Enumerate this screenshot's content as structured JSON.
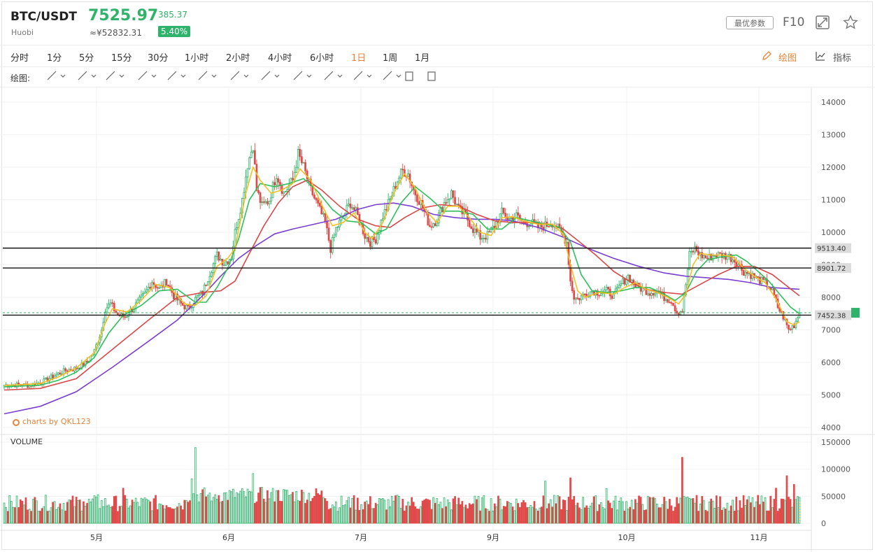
{
  "header": {
    "pair": "BTC/USDT",
    "exchange": "Huobi",
    "price": "7525.97",
    "change": "385.37",
    "cny_price": "≈¥52832.31",
    "change_pct": "5.40%",
    "opt_label": "最优参数",
    "f10_label": "F10"
  },
  "periods": [
    "分时",
    "1分",
    "5分",
    "15分",
    "30分",
    "1小时",
    "2小时",
    "4小时",
    "6小时",
    "1日",
    "1周",
    "1月"
  ],
  "active_period": "1日",
  "toolbar": {
    "draw_label": "绘图",
    "indicator_label": "指标",
    "tools_label": "绘图:"
  },
  "watermark": "charts by QKL123",
  "volume_label": "VOLUME",
  "colors": {
    "up": "#2fb36b",
    "down": "#e04a4a",
    "ma5": "#f2c01e",
    "ma10": "#2ec05a",
    "ma30": "#d94848",
    "ma60": "#7a3fd0",
    "accent": "#e8833a"
  },
  "chart_data": {
    "type": "candlestick",
    "price_axis": {
      "min": 4000,
      "max": 14000,
      "ticks": [
        4000,
        5000,
        6000,
        7000,
        8000,
        9000,
        10000,
        11000,
        12000,
        13000,
        14000
      ]
    },
    "volume_axis": {
      "min": 0,
      "max": 150000,
      "ticks": [
        0,
        50000,
        100000,
        150000
      ]
    },
    "x_labels": [
      "5月",
      "6月",
      "7月",
      "9月",
      "10月",
      "11月"
    ],
    "horizontal_lines": [
      9513.4,
      8901.72,
      7452.38
    ],
    "horizontal_line_labels": [
      "9513.40",
      "8901.72",
      "7452.38"
    ],
    "last_price": 7525.97,
    "close_path": [
      [
        0,
        5300
      ],
      [
        8,
        5310
      ],
      [
        14,
        5290
      ],
      [
        22,
        5420
      ],
      [
        28,
        5600
      ],
      [
        34,
        5750
      ],
      [
        40,
        5820
      ],
      [
        46,
        6000
      ],
      [
        50,
        6350
      ],
      [
        54,
        7000
      ],
      [
        56,
        7650
      ],
      [
        59,
        7800
      ],
      [
        63,
        7450
      ],
      [
        67,
        7400
      ],
      [
        72,
        7700
      ],
      [
        78,
        8100
      ],
      [
        82,
        8500
      ],
      [
        86,
        8250
      ],
      [
        90,
        8500
      ],
      [
        94,
        8050
      ],
      [
        98,
        7800
      ],
      [
        102,
        7650
      ],
      [
        106,
        7950
      ],
      [
        110,
        8150
      ],
      [
        114,
        8750
      ],
      [
        118,
        9300
      ],
      [
        122,
        9050
      ],
      [
        126,
        9250
      ],
      [
        128,
        10000
      ],
      [
        132,
        11000
      ],
      [
        135,
        12100
      ],
      [
        138,
        12700
      ],
      [
        140,
        11300
      ],
      [
        143,
        10800
      ],
      [
        147,
        11000
      ],
      [
        151,
        11800
      ],
      [
        155,
        11200
      ],
      [
        160,
        11600
      ],
      [
        163,
        12400
      ],
      [
        166,
        12000
      ],
      [
        170,
        11300
      ],
      [
        174,
        10800
      ],
      [
        178,
        10300
      ],
      [
        181,
        9500
      ],
      [
        184,
        10100
      ],
      [
        188,
        10500
      ],
      [
        192,
        10900
      ],
      [
        196,
        10500
      ],
      [
        200,
        9900
      ],
      [
        203,
        9700
      ],
      [
        206,
        9800
      ],
      [
        210,
        10500
      ],
      [
        214,
        11000
      ],
      [
        218,
        11600
      ],
      [
        221,
        11900
      ],
      [
        224,
        11800
      ],
      [
        227,
        11300
      ],
      [
        231,
        10900
      ],
      [
        236,
        10200
      ],
      [
        240,
        10400
      ],
      [
        244,
        10900
      ],
      [
        248,
        11200
      ],
      [
        252,
        10700
      ],
      [
        256,
        10500
      ],
      [
        260,
        10100
      ],
      [
        264,
        9850
      ],
      [
        268,
        9900
      ],
      [
        272,
        10200
      ],
      [
        276,
        10600
      ],
      [
        280,
        10400
      ],
      [
        284,
        10500
      ],
      [
        288,
        10300
      ],
      [
        292,
        10300
      ],
      [
        296,
        10150
      ],
      [
        300,
        10200
      ],
      [
        304,
        10300
      ],
      [
        308,
        10050
      ],
      [
        312,
        9700
      ],
      [
        314,
        8500
      ],
      [
        316,
        8000
      ],
      [
        318,
        7950
      ],
      [
        322,
        8100
      ],
      [
        326,
        8200
      ],
      [
        330,
        8150
      ],
      [
        334,
        8200
      ],
      [
        338,
        8050
      ],
      [
        342,
        8400
      ],
      [
        346,
        8650
      ],
      [
        350,
        8350
      ],
      [
        354,
        8250
      ],
      [
        358,
        8150
      ],
      [
        362,
        8200
      ],
      [
        366,
        8000
      ],
      [
        370,
        7900
      ],
      [
        373,
        7550
      ],
      [
        376,
        7600
      ],
      [
        378,
        8400
      ],
      [
        380,
        9300
      ],
      [
        383,
        9500
      ],
      [
        386,
        9300
      ],
      [
        390,
        9200
      ],
      [
        394,
        9300
      ],
      [
        398,
        9300
      ],
      [
        402,
        9250
      ],
      [
        406,
        9100
      ],
      [
        410,
        8800
      ],
      [
        414,
        8700
      ],
      [
        418,
        8550
      ],
      [
        422,
        8450
      ],
      [
        426,
        8200
      ],
      [
        429,
        7700
      ],
      [
        432,
        7400
      ],
      [
        435,
        7000
      ],
      [
        438,
        7150
      ],
      [
        441,
        7526
      ]
    ],
    "ma5": [
      [
        0,
        5290
      ],
      [
        20,
        5350
      ],
      [
        30,
        5550
      ],
      [
        40,
        5830
      ],
      [
        50,
        6300
      ],
      [
        56,
        7200
      ],
      [
        60,
        7650
      ],
      [
        68,
        7550
      ],
      [
        76,
        7900
      ],
      [
        84,
        8400
      ],
      [
        92,
        8300
      ],
      [
        100,
        7800
      ],
      [
        106,
        7750
      ],
      [
        112,
        8050
      ],
      [
        118,
        8950
      ],
      [
        124,
        9200
      ],
      [
        128,
        9500
      ],
      [
        134,
        11200
      ],
      [
        138,
        12000
      ],
      [
        142,
        11600
      ],
      [
        148,
        11200
      ],
      [
        154,
        11300
      ],
      [
        160,
        11500
      ],
      [
        164,
        11950
      ],
      [
        170,
        11600
      ],
      [
        176,
        10850
      ],
      [
        182,
        10200
      ],
      [
        188,
        10300
      ],
      [
        194,
        10600
      ],
      [
        200,
        10000
      ],
      [
        204,
        9800
      ],
      [
        210,
        10300
      ],
      [
        216,
        11200
      ],
      [
        222,
        11800
      ],
      [
        228,
        11350
      ],
      [
        234,
        10650
      ],
      [
        240,
        10300
      ],
      [
        246,
        10800
      ],
      [
        252,
        10800
      ],
      [
        258,
        10450
      ],
      [
        264,
        10000
      ],
      [
        270,
        9900
      ],
      [
        276,
        10450
      ],
      [
        282,
        10480
      ],
      [
        288,
        10350
      ],
      [
        296,
        10250
      ],
      [
        304,
        10250
      ],
      [
        310,
        9950
      ],
      [
        314,
        9000
      ],
      [
        318,
        8200
      ],
      [
        322,
        8000
      ],
      [
        330,
        8150
      ],
      [
        338,
        8100
      ],
      [
        344,
        8300
      ],
      [
        350,
        8450
      ],
      [
        356,
        8250
      ],
      [
        362,
        8150
      ],
      [
        368,
        8000
      ],
      [
        374,
        7800
      ],
      [
        378,
        8100
      ],
      [
        382,
        9000
      ],
      [
        386,
        9350
      ],
      [
        392,
        9300
      ],
      [
        398,
        9300
      ],
      [
        404,
        9250
      ],
      [
        410,
        8900
      ],
      [
        416,
        8650
      ],
      [
        422,
        8450
      ],
      [
        428,
        7950
      ],
      [
        434,
        7250
      ],
      [
        438,
        7150
      ],
      [
        441,
        7250
      ]
    ],
    "ma10": [
      [
        0,
        5250
      ],
      [
        20,
        5300
      ],
      [
        30,
        5450
      ],
      [
        40,
        5700
      ],
      [
        50,
        6150
      ],
      [
        58,
        6900
      ],
      [
        66,
        7450
      ],
      [
        76,
        7750
      ],
      [
        86,
        8200
      ],
      [
        96,
        8250
      ],
      [
        106,
        7850
      ],
      [
        112,
        7850
      ],
      [
        118,
        8300
      ],
      [
        124,
        8900
      ],
      [
        130,
        9800
      ],
      [
        136,
        11000
      ],
      [
        142,
        11500
      ],
      [
        150,
        11400
      ],
      [
        158,
        11500
      ],
      [
        166,
        11650
      ],
      [
        174,
        11250
      ],
      [
        182,
        10700
      ],
      [
        190,
        10350
      ],
      [
        198,
        10300
      ],
      [
        206,
        9950
      ],
      [
        212,
        10100
      ],
      [
        220,
        10900
      ],
      [
        228,
        11400
      ],
      [
        236,
        11050
      ],
      [
        244,
        10650
      ],
      [
        252,
        10650
      ],
      [
        260,
        10550
      ],
      [
        268,
        10100
      ],
      [
        276,
        10100
      ],
      [
        284,
        10450
      ],
      [
        292,
        10350
      ],
      [
        300,
        10250
      ],
      [
        308,
        10150
      ],
      [
        314,
        9700
      ],
      [
        320,
        8700
      ],
      [
        326,
        8200
      ],
      [
        334,
        8150
      ],
      [
        342,
        8200
      ],
      [
        350,
        8300
      ],
      [
        358,
        8300
      ],
      [
        366,
        8100
      ],
      [
        372,
        7900
      ],
      [
        378,
        8150
      ],
      [
        384,
        8800
      ],
      [
        390,
        9150
      ],
      [
        398,
        9250
      ],
      [
        406,
        9300
      ],
      [
        412,
        9100
      ],
      [
        418,
        8800
      ],
      [
        424,
        8500
      ],
      [
        430,
        8100
      ],
      [
        436,
        7700
      ],
      [
        441,
        7500
      ]
    ],
    "ma30": [
      [
        0,
        5150
      ],
      [
        20,
        5200
      ],
      [
        40,
        5500
      ],
      [
        60,
        6400
      ],
      [
        80,
        7300
      ],
      [
        96,
        8000
      ],
      [
        110,
        8150
      ],
      [
        120,
        8200
      ],
      [
        128,
        8500
      ],
      [
        136,
        9350
      ],
      [
        144,
        10200
      ],
      [
        152,
        10900
      ],
      [
        160,
        11400
      ],
      [
        168,
        11600
      ],
      [
        176,
        11300
      ],
      [
        186,
        10800
      ],
      [
        196,
        10400
      ],
      [
        206,
        10200
      ],
      [
        214,
        10150
      ],
      [
        222,
        10450
      ],
      [
        232,
        10750
      ],
      [
        242,
        10850
      ],
      [
        252,
        10800
      ],
      [
        262,
        10550
      ],
      [
        272,
        10350
      ],
      [
        282,
        10300
      ],
      [
        292,
        10300
      ],
      [
        302,
        10250
      ],
      [
        310,
        10100
      ],
      [
        318,
        9750
      ],
      [
        328,
        9300
      ],
      [
        338,
        8800
      ],
      [
        348,
        8450
      ],
      [
        356,
        8250
      ],
      [
        366,
        8150
      ],
      [
        376,
        8100
      ],
      [
        386,
        8400
      ],
      [
        396,
        8700
      ],
      [
        406,
        8950
      ],
      [
        416,
        8950
      ],
      [
        426,
        8700
      ],
      [
        434,
        8350
      ],
      [
        441,
        8050
      ]
    ],
    "ma60": [
      [
        0,
        4420
      ],
      [
        20,
        4650
      ],
      [
        40,
        5100
      ],
      [
        60,
        5850
      ],
      [
        80,
        6650
      ],
      [
        96,
        7300
      ],
      [
        110,
        8050
      ],
      [
        120,
        8650
      ],
      [
        130,
        9200
      ],
      [
        140,
        9600
      ],
      [
        150,
        9950
      ],
      [
        160,
        10100
      ],
      [
        172,
        10250
      ],
      [
        184,
        10400
      ],
      [
        196,
        10700
      ],
      [
        206,
        10850
      ],
      [
        216,
        10900
      ],
      [
        226,
        10800
      ],
      [
        238,
        10550
      ],
      [
        250,
        10450
      ],
      [
        262,
        10400
      ],
      [
        272,
        10400
      ],
      [
        282,
        10350
      ],
      [
        296,
        10150
      ],
      [
        310,
        9850
      ],
      [
        324,
        9500
      ],
      [
        338,
        9200
      ],
      [
        352,
        8950
      ],
      [
        366,
        8750
      ],
      [
        378,
        8650
      ],
      [
        390,
        8600
      ],
      [
        402,
        8550
      ],
      [
        414,
        8450
      ],
      [
        426,
        8300
      ],
      [
        441,
        8250
      ]
    ],
    "volume_spikes": [
      [
        44,
        40000
      ],
      [
        52,
        53000
      ],
      [
        66,
        65000
      ],
      [
        104,
        82000
      ],
      [
        106,
        140000
      ],
      [
        116,
        48000
      ],
      [
        138,
        92000
      ],
      [
        151,
        60000
      ],
      [
        174,
        55000
      ],
      [
        193,
        46000
      ],
      [
        218,
        52000
      ],
      [
        256,
        34000
      ],
      [
        300,
        78000
      ],
      [
        314,
        84000
      ],
      [
        316,
        50000
      ],
      [
        334,
        64000
      ],
      [
        360,
        48000
      ],
      [
        376,
        122000
      ],
      [
        382,
        46000
      ],
      [
        428,
        65000
      ],
      [
        434,
        88000
      ],
      [
        438,
        72000
      ],
      [
        441,
        48000
      ]
    ]
  }
}
